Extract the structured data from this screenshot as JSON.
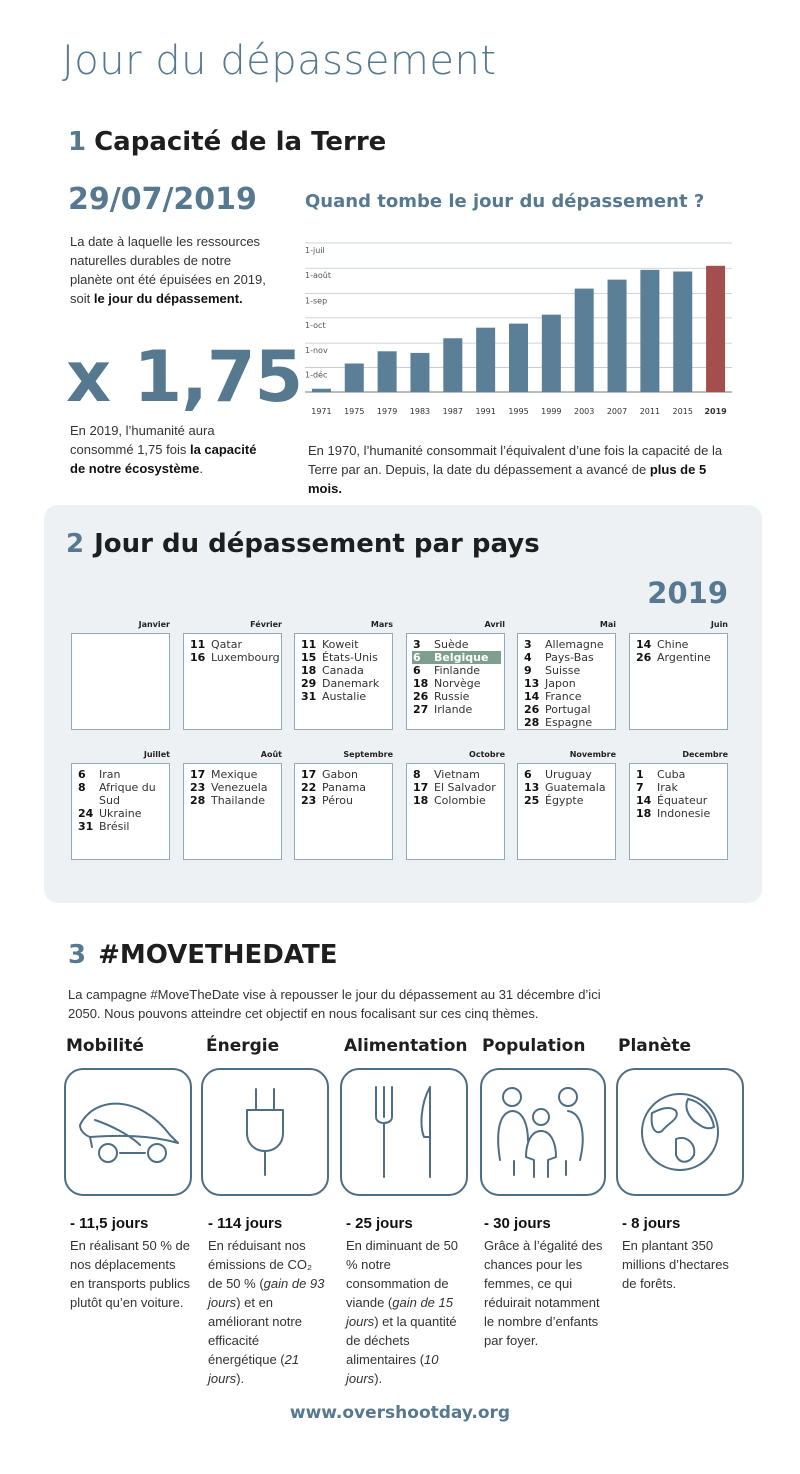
{
  "header": {
    "title": "Jour du dépassement"
  },
  "section1": {
    "number": "1",
    "heading": "Capacité de la Terre",
    "date": "29/07/2019",
    "date_text": {
      "text": "La date à laquelle les ressources naturelles durables de notre planète ont été épuisées en 2019, soit ",
      "strong": "le jour du dépassement."
    },
    "multiplier": "x 1,75",
    "multiplier_text": {
      "text": "En 2019, l’humanité aura consommé 1,75 fois ",
      "strong": "la capacité de notre écosystème",
      "after": "."
    },
    "caption": {
      "text": "En 1970, l’humanité consommait l’équivalent d’une fois la capacité de la Terre par an. Depuis, la date du dépassement a avancé de ",
      "strong": "plus de 5 mois."
    }
  },
  "chart_data": {
    "type": "bar",
    "title": "Quand tombe le jour du dépassement ?",
    "categories": [
      "1971",
      "1975",
      "1979",
      "1983",
      "1987",
      "1991",
      "1995",
      "1999",
      "2003",
      "2007",
      "2011",
      "2015",
      "2019"
    ],
    "values": [
      361,
      330,
      315,
      317,
      299,
      286,
      281,
      270,
      238,
      227,
      215,
      217,
      210
    ],
    "colors": [
      "#5a7f96",
      "#5a7f96",
      "#5a7f96",
      "#5a7f96",
      "#5a7f96",
      "#5a7f96",
      "#5a7f96",
      "#5a7f96",
      "#5a7f96",
      "#5a7f96",
      "#5a7f96",
      "#5a7f96",
      "#a34f4d"
    ],
    "ylim": [
      365,
      182
    ],
    "yticks": [
      {
        "value": 182,
        "label": "1-juil"
      },
      {
        "value": 213,
        "label": "1-août"
      },
      {
        "value": 244,
        "label": "1-sep"
      },
      {
        "value": 274,
        "label": "1-oct"
      },
      {
        "value": 305,
        "label": "1-nov"
      },
      {
        "value": 335,
        "label": "1-déc"
      }
    ],
    "grid": true
  },
  "section2": {
    "number": "2",
    "heading": "Jour du dépassement par pays",
    "year": "2019",
    "months": [
      {
        "name": "Janvier",
        "entries": []
      },
      {
        "name": "Février",
        "entries": [
          {
            "day": "11",
            "country": "Qatar"
          },
          {
            "day": "16",
            "country": "Luxembourg"
          }
        ]
      },
      {
        "name": "Mars",
        "entries": [
          {
            "day": "11",
            "country": "Koweit"
          },
          {
            "day": "15",
            "country": "États-Unis"
          },
          {
            "day": "18",
            "country": "Canada"
          },
          {
            "day": "29",
            "country": "Danemark"
          },
          {
            "day": "31",
            "country": "Austalie"
          }
        ]
      },
      {
        "name": "Avril",
        "entries": [
          {
            "day": "3",
            "country": "Suède"
          },
          {
            "day": "6",
            "country": "Belgique",
            "highlight": true
          },
          {
            "day": "6",
            "country": "Finlande"
          },
          {
            "day": "18",
            "country": "Norvège"
          },
          {
            "day": "26",
            "country": "Russie"
          },
          {
            "day": "27",
            "country": "Irlande"
          }
        ]
      },
      {
        "name": "Mai",
        "entries": [
          {
            "day": "3",
            "country": "Allemagne"
          },
          {
            "day": "4",
            "country": "Pays-Bas"
          },
          {
            "day": "9",
            "country": "Suisse"
          },
          {
            "day": "13",
            "country": "Japon"
          },
          {
            "day": "14",
            "country": "France"
          },
          {
            "day": "26",
            "country": "Portugal"
          },
          {
            "day": "28",
            "country": "Espagne"
          }
        ]
      },
      {
        "name": "Juin",
        "entries": [
          {
            "day": "14",
            "country": "Chine"
          },
          {
            "day": "26",
            "country": "Argentine"
          }
        ]
      },
      {
        "name": "Juillet",
        "entries": [
          {
            "day": "6",
            "country": "Iran"
          },
          {
            "day": "8",
            "country": "Afrique du Sud"
          },
          {
            "day": "24",
            "country": "Ukraine"
          },
          {
            "day": "31",
            "country": "Brésil"
          }
        ]
      },
      {
        "name": "Août",
        "entries": [
          {
            "day": "17",
            "country": "Mexique"
          },
          {
            "day": "23",
            "country": "Venezuela"
          },
          {
            "day": "28",
            "country": "Thailande"
          }
        ]
      },
      {
        "name": "Septembre",
        "entries": [
          {
            "day": "17",
            "country": "Gabon"
          },
          {
            "day": "22",
            "country": "Panama"
          },
          {
            "day": "23",
            "country": "Pérou"
          }
        ]
      },
      {
        "name": "Octobre",
        "entries": [
          {
            "day": "8",
            "country": "Vietnam"
          },
          {
            "day": "17",
            "country": "El Salvador"
          },
          {
            "day": "18",
            "country": "Colombie"
          }
        ]
      },
      {
        "name": "Novembre",
        "entries": [
          {
            "day": "6",
            "country": "Uruguay"
          },
          {
            "day": "13",
            "country": "Guatemala"
          },
          {
            "day": "25",
            "country": "Égypte"
          }
        ]
      },
      {
        "name": "Decembre",
        "entries": [
          {
            "day": "1",
            "country": "Cuba"
          },
          {
            "day": "7",
            "country": "Irak"
          },
          {
            "day": "14",
            "country": "Équateur"
          },
          {
            "day": "18",
            "country": "Indonesie"
          }
        ]
      }
    ]
  },
  "section3": {
    "number": "3",
    "heading": "#MOVETHEDATE",
    "intro": "La campagne #MoveTheDate vise à repousser le jour du dépassement au 31 décembre d’ici 2050. Nous pouvons atteindre cet objectif en nous focalisant sur ces cinq thèmes.",
    "themes": [
      {
        "name": "Mobilité",
        "result": "- 11,5 jours",
        "text": [
          "En réalisant 50 % de nos déplacements en transports publics plutôt qu’en voiture."
        ]
      },
      {
        "name": "Énergie",
        "result": "- 114 jours",
        "text": [
          "En réduisant nos émissions de CO₂ de 50 % (",
          "gain de 93 jours",
          ") et en améliorant notre efficacité énergétique (",
          "21 jours",
          ")."
        ]
      },
      {
        "name": "Alimentation",
        "result": "- 25 jours",
        "text": [
          "En diminuant de 50 % notre consommation de viande (",
          "gain de 15 jours",
          ") et la quantité de déchets alimentaires (",
          "10 jours",
          ")."
        ]
      },
      {
        "name": "Population",
        "result": "- 30 jours",
        "text": [
          "Grâce à l’égalité des chances pour les femmes, ce qui réduirait notamment le nombre d’enfants par foyer."
        ]
      },
      {
        "name": "Planète",
        "result": "- 8 jours",
        "text": [
          "En plantant 350 millions d’hectares de forêts."
        ]
      }
    ]
  },
  "footer": {
    "url": "www.overshootday.org"
  }
}
